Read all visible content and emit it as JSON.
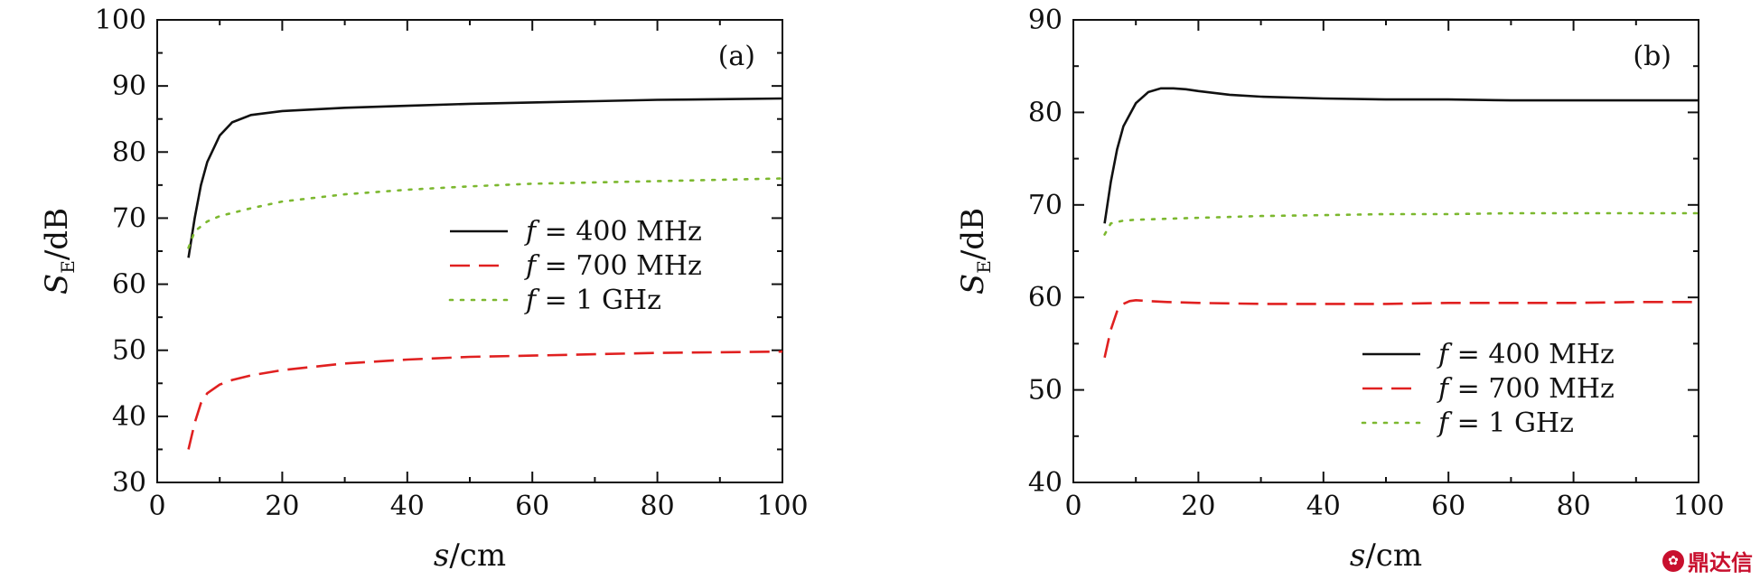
{
  "watermark": "鼎达信",
  "chart_data": [
    {
      "type": "line",
      "panel_label": "(a)",
      "title": "",
      "xlabel": "s/cm",
      "ylabel": "SE/dB",
      "xlim": [
        0,
        100
      ],
      "ylim": [
        30,
        100
      ],
      "xticks": [
        "0",
        "20",
        "40",
        "60",
        "80",
        "100"
      ],
      "yticks": [
        "30",
        "40",
        "50",
        "60",
        "70",
        "80",
        "90",
        "100"
      ],
      "legend_position": "center-right",
      "series": [
        {
          "name": "f = 400 MHz",
          "legend_italic": "f",
          "legend_rest": " = 400 MHz",
          "color": "#111111",
          "dash": "",
          "x": [
            5,
            6,
            7,
            8,
            10,
            12,
            15,
            20,
            30,
            40,
            50,
            60,
            70,
            80,
            90,
            100
          ],
          "y": [
            64,
            70,
            75,
            78.5,
            82.5,
            84.5,
            85.6,
            86.2,
            86.7,
            87.0,
            87.3,
            87.5,
            87.7,
            87.9,
            88.0,
            88.1
          ]
        },
        {
          "name": "f = 700 MHz",
          "legend_italic": "f",
          "legend_rest": " = 700 MHz",
          "color": "#e02020",
          "dash": "22 10",
          "x": [
            5,
            6,
            7,
            8,
            10,
            12,
            15,
            20,
            30,
            40,
            50,
            60,
            70,
            80,
            90,
            100
          ],
          "y": [
            35,
            39,
            42,
            43.5,
            44.8,
            45.5,
            46.2,
            47.0,
            48.0,
            48.6,
            49.0,
            49.2,
            49.4,
            49.6,
            49.7,
            49.8
          ]
        },
        {
          "name": "f = 1 GHz",
          "legend_italic": "f",
          "legend_rest": " = 1 GHz",
          "color": "#7cb82f",
          "dash": "3 9",
          "x": [
            5,
            6,
            8,
            10,
            15,
            20,
            30,
            40,
            50,
            60,
            70,
            80,
            90,
            100
          ],
          "y": [
            65.5,
            68,
            69.5,
            70.3,
            71.5,
            72.5,
            73.6,
            74.3,
            74.8,
            75.2,
            75.4,
            75.6,
            75.8,
            76.0
          ]
        }
      ]
    },
    {
      "type": "line",
      "panel_label": "(b)",
      "title": "",
      "xlabel": "s/cm",
      "ylabel": "SE/dB",
      "xlim": [
        0,
        100
      ],
      "ylim": [
        40,
        90
      ],
      "xticks": [
        "0",
        "20",
        "40",
        "60",
        "80",
        "100"
      ],
      "yticks": [
        "40",
        "50",
        "60",
        "70",
        "80",
        "90"
      ],
      "legend_position": "lower-right",
      "series": [
        {
          "name": "f = 400 MHz",
          "legend_italic": "f",
          "legend_rest": " = 400 MHz",
          "color": "#111111",
          "dash": "",
          "x": [
            5,
            6,
            7,
            8,
            10,
            12,
            14,
            16,
            18,
            20,
            25,
            30,
            40,
            50,
            60,
            70,
            80,
            90,
            100
          ],
          "y": [
            68,
            72.5,
            76,
            78.5,
            81,
            82.2,
            82.6,
            82.6,
            82.5,
            82.3,
            81.9,
            81.7,
            81.5,
            81.4,
            81.4,
            81.3,
            81.3,
            81.3,
            81.3
          ]
        },
        {
          "name": "f = 700 MHz",
          "legend_italic": "f",
          "legend_rest": " = 700 MHz",
          "color": "#e02020",
          "dash": "22 10",
          "x": [
            5,
            6,
            7,
            8,
            9,
            10,
            12,
            15,
            20,
            30,
            40,
            50,
            60,
            70,
            80,
            90,
            100
          ],
          "y": [
            53.5,
            56.5,
            58.5,
            59.3,
            59.6,
            59.7,
            59.6,
            59.5,
            59.4,
            59.3,
            59.3,
            59.3,
            59.4,
            59.4,
            59.4,
            59.5,
            59.5
          ]
        },
        {
          "name": "f = 1 GHz",
          "legend_italic": "f",
          "legend_rest": " = 1 GHz",
          "color": "#7cb82f",
          "dash": "3 9",
          "x": [
            5,
            6,
            8,
            10,
            20,
            30,
            40,
            50,
            60,
            70,
            80,
            90,
            100
          ],
          "y": [
            66.8,
            68,
            68.3,
            68.4,
            68.6,
            68.8,
            68.9,
            69.0,
            69.0,
            69.1,
            69.1,
            69.1,
            69.1
          ]
        }
      ]
    }
  ]
}
